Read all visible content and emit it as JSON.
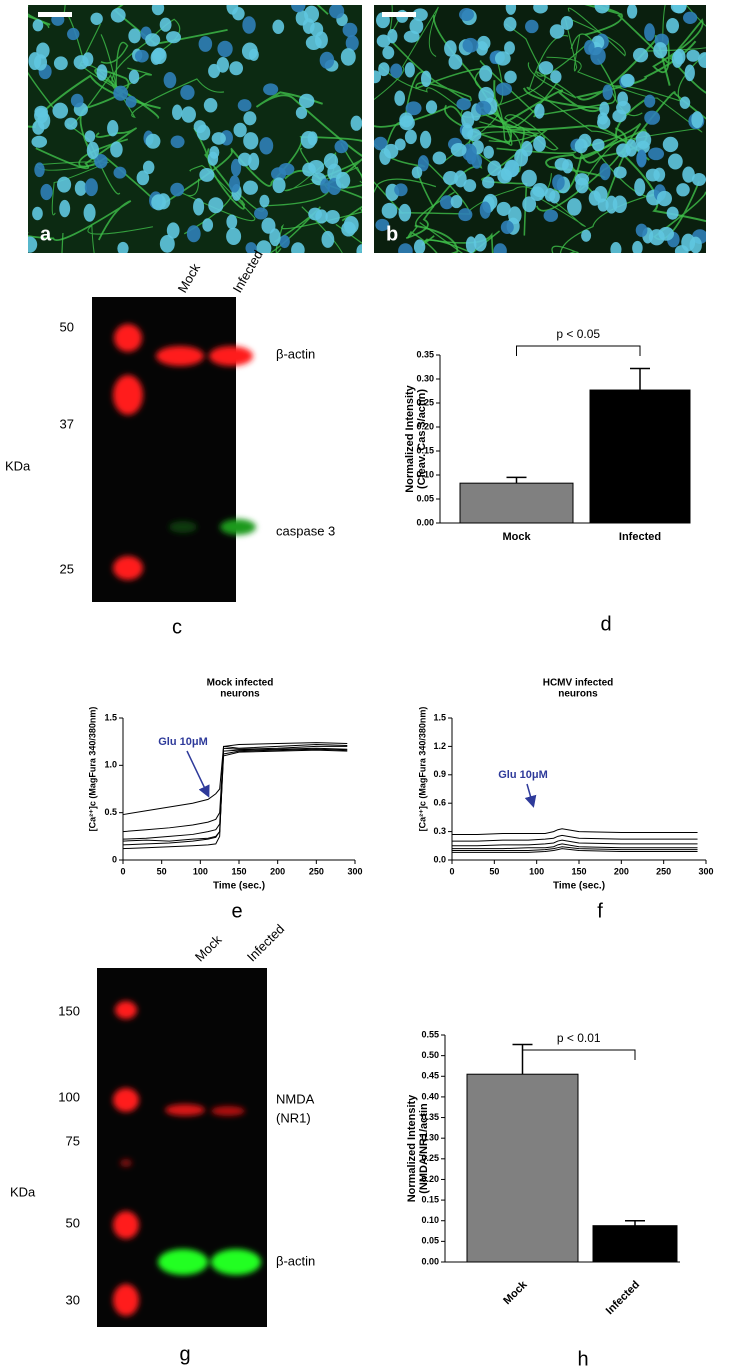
{
  "panel_a": {
    "letter": "a"
  },
  "panel_b": {
    "letter": "b"
  },
  "blot_c": {
    "lanes": [
      "Mock",
      "Infected"
    ],
    "markers": [
      "50",
      "37",
      "25"
    ],
    "unit": "KDa",
    "bands": [
      "β-actin",
      "caspase 3"
    ],
    "letter": "c"
  },
  "blot_g": {
    "lanes": [
      "Mock",
      "Infected"
    ],
    "markers": [
      "150",
      "100",
      "75",
      "50",
      "30"
    ],
    "unit": "KDa",
    "bands": [
      "NMDA",
      "(NR1)",
      "β-actin"
    ],
    "letter": "g"
  },
  "chart_data": [
    {
      "type": "bar",
      "letter": "d",
      "ylabel": [
        "Normalized Intensity",
        "(Cleav. Cas 3/actin)"
      ],
      "annotation": "p < 0.05",
      "categories": [
        "Mock",
        "Infected"
      ],
      "values": [
        0.083,
        0.277
      ],
      "errors": [
        0.012,
        0.045
      ],
      "colors": [
        "#808080",
        "#000000"
      ],
      "ylim": [
        0,
        0.35
      ],
      "yticks": [
        {
          "value": 0,
          "label": "0.00"
        },
        {
          "value": 0.05,
          "label": "0.05"
        },
        {
          "value": 0.1,
          "label": "0.10"
        },
        {
          "value": 0.15,
          "label": "0.15"
        },
        {
          "value": 0.2,
          "label": "0.20"
        },
        {
          "value": 0.25,
          "label": "0.25"
        },
        {
          "value": 0.3,
          "label": "0.30"
        },
        {
          "value": 0.35,
          "label": "0.35"
        }
      ]
    },
    {
      "type": "line",
      "letter": "e",
      "title": [
        "Mock infected",
        "neurons"
      ],
      "xlabel": "Time (sec.)",
      "ylabel": "[Ca²⁺]c (MagFura 340/380nm)",
      "annotation": "Glu 10μM",
      "x": [
        0,
        30,
        60,
        90,
        110,
        120,
        125,
        130,
        150,
        200,
        250,
        290
      ],
      "series": [
        {
          "color": "#000000",
          "values": [
            0.48,
            0.52,
            0.56,
            0.6,
            0.64,
            0.7,
            0.75,
            1.2,
            1.18,
            1.2,
            1.22,
            1.21
          ]
        },
        {
          "color": "#000000",
          "values": [
            0.3,
            0.32,
            0.34,
            0.37,
            0.4,
            0.43,
            0.5,
            1.18,
            1.17,
            1.18,
            1.2,
            1.2
          ]
        },
        {
          "color": "#000000",
          "values": [
            0.22,
            0.23,
            0.25,
            0.27,
            0.3,
            0.32,
            0.38,
            1.15,
            1.16,
            1.17,
            1.18,
            1.17
          ]
        },
        {
          "color": "#000000",
          "values": [
            0.16,
            0.17,
            0.18,
            0.2,
            0.22,
            0.24,
            0.3,
            1.12,
            1.15,
            1.16,
            1.17,
            1.16
          ]
        },
        {
          "color": "#000000",
          "values": [
            0.12,
            0.13,
            0.14,
            0.15,
            0.16,
            0.17,
            0.25,
            1.2,
            1.22,
            1.23,
            1.24,
            1.23
          ]
        },
        {
          "color": "#000000",
          "values": [
            0.2,
            0.21,
            0.2,
            0.22,
            0.23,
            0.25,
            0.3,
            1.1,
            1.14,
            1.15,
            1.16,
            1.15
          ]
        }
      ],
      "xlim": [
        0,
        300
      ],
      "xticks": [
        0,
        50,
        100,
        150,
        200,
        250,
        300
      ],
      "ylim": [
        0,
        1.5
      ],
      "yticks": [
        0,
        0.5,
        {
          "value": 1,
          "label": "1.0"
        },
        1.5
      ]
    },
    {
      "type": "line",
      "letter": "f",
      "title": [
        "HCMV infected",
        "neurons"
      ],
      "xlabel": "Time (sec.)",
      "ylabel": "[Ca²⁺]c (MagFura 340/380nm)",
      "annotation": "Glu 10μM",
      "x": [
        0,
        30,
        60,
        90,
        110,
        120,
        125,
        130,
        150,
        200,
        250,
        290
      ],
      "series": [
        {
          "color": "#000000",
          "values": [
            0.27,
            0.27,
            0.28,
            0.28,
            0.28,
            0.3,
            0.32,
            0.33,
            0.3,
            0.29,
            0.29,
            0.29
          ]
        },
        {
          "color": "#000000",
          "values": [
            0.2,
            0.2,
            0.21,
            0.21,
            0.22,
            0.23,
            0.25,
            0.26,
            0.23,
            0.22,
            0.22,
            0.22
          ]
        },
        {
          "color": "#000000",
          "values": [
            0.15,
            0.15,
            0.16,
            0.16,
            0.17,
            0.18,
            0.2,
            0.21,
            0.18,
            0.17,
            0.17,
            0.17
          ]
        },
        {
          "color": "#000000",
          "values": [
            0.12,
            0.12,
            0.12,
            0.13,
            0.13,
            0.14,
            0.16,
            0.17,
            0.14,
            0.13,
            0.13,
            0.13
          ]
        },
        {
          "color": "#000000",
          "values": [
            0.1,
            0.1,
            0.1,
            0.1,
            0.11,
            0.12,
            0.13,
            0.14,
            0.12,
            0.11,
            0.11,
            0.11
          ]
        },
        {
          "color": "#000000",
          "values": [
            0.08,
            0.08,
            0.08,
            0.08,
            0.09,
            0.1,
            0.11,
            0.12,
            0.1,
            0.09,
            0.09,
            0.09
          ]
        }
      ],
      "xlim": [
        0,
        300
      ],
      "xticks": [
        0,
        50,
        100,
        150,
        200,
        250,
        300
      ],
      "ylim": [
        0,
        1.5
      ],
      "yticks": [
        {
          "value": 0,
          "label": "0.0"
        },
        0.3,
        0.6,
        0.9,
        1.2,
        1.5
      ]
    },
    {
      "type": "bar",
      "letter": "h",
      "ylabel": [
        "Normalized Intensity",
        "(NMDA/NR1/actin"
      ],
      "annotation": "p < 0.01",
      "rotate_categories": true,
      "categories": [
        "Mock",
        "Infected"
      ],
      "values": [
        0.455,
        0.088
      ],
      "errors": [
        0.072,
        0.012
      ],
      "colors": [
        "#808080",
        "#000000"
      ],
      "ylim": [
        0,
        0.55
      ],
      "yticks": [
        {
          "value": 0,
          "label": "0.00"
        },
        {
          "value": 0.05,
          "label": "0.05"
        },
        {
          "value": 0.1,
          "label": "0.10"
        },
        {
          "value": 0.15,
          "label": "0.15"
        },
        {
          "value": 0.2,
          "label": "0.20"
        },
        {
          "value": 0.25,
          "label": "0.25"
        },
        {
          "value": 0.3,
          "label": "0.30"
        },
        {
          "value": 0.35,
          "label": "0.35"
        },
        {
          "value": 0.4,
          "label": "0.40"
        },
        {
          "value": 0.45,
          "label": "0.45"
        },
        {
          "value": 0.5,
          "label": "0.50"
        },
        {
          "value": 0.55,
          "label": "0.55"
        }
      ]
    }
  ]
}
